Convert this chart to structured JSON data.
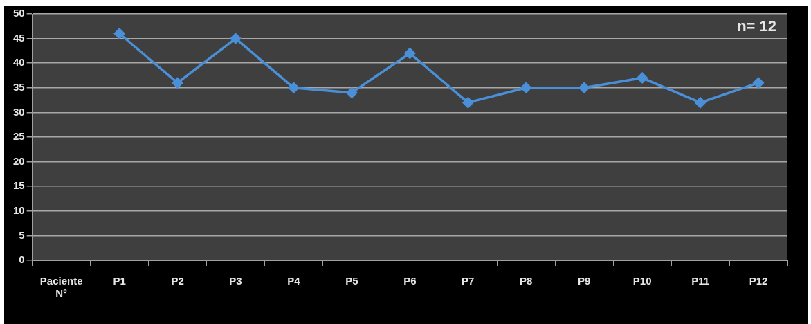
{
  "chart_data": {
    "type": "line",
    "categories": [
      "Paciente N°",
      "P1",
      "P2",
      "P3",
      "P4",
      "P5",
      "P6",
      "P7",
      "P8",
      "P9",
      "P10",
      "P11",
      "P12"
    ],
    "values": [
      null,
      46,
      36,
      45,
      35,
      34,
      42,
      32,
      35,
      35,
      37,
      32,
      36
    ],
    "color": "#4a90d9",
    "ylim": [
      0,
      50
    ],
    "yticks": [
      0,
      5,
      10,
      15,
      20,
      25,
      30,
      35,
      40,
      45,
      50
    ],
    "grid": "y",
    "marker": "diamond",
    "line_style": "solid",
    "legend": false,
    "annotations": [
      "n= 12"
    ]
  }
}
